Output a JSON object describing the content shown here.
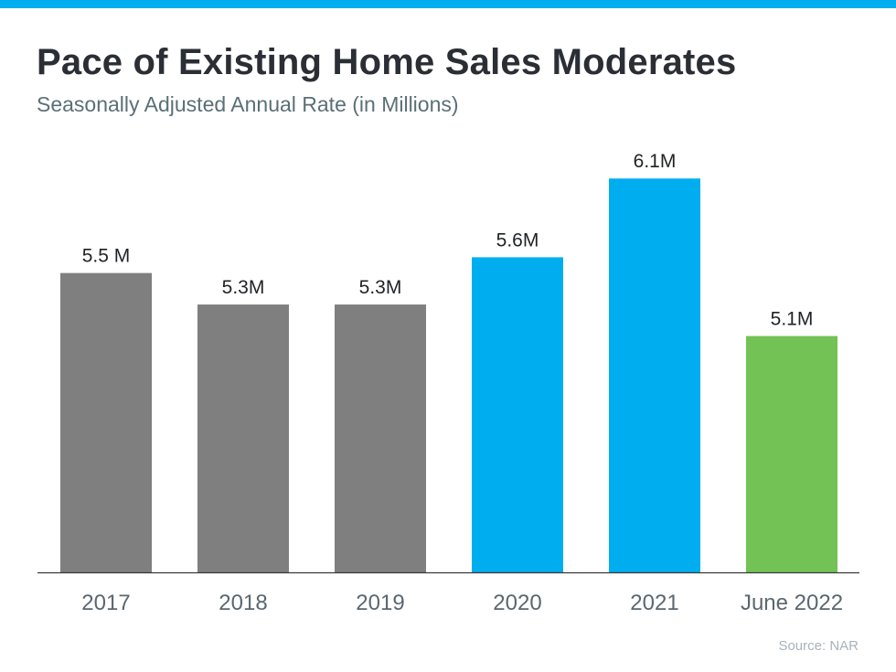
{
  "header": {
    "title": "Pace of Existing Home Sales Moderates",
    "subtitle": "Seasonally Adjusted Annual Rate (in Millions)"
  },
  "footer": {
    "source": "Source: NAR"
  },
  "colors": {
    "accent": "#00aeef",
    "gray": "#7f7f7f",
    "blue": "#00aeef",
    "green": "#72c256"
  },
  "chart_data": {
    "type": "bar",
    "title": "Pace of Existing Home Sales Moderates",
    "subtitle": "Seasonally Adjusted Annual Rate (in Millions)",
    "categories": [
      "2017",
      "2018",
      "2019",
      "2020",
      "2021",
      "June 2022"
    ],
    "values": [
      5.5,
      5.3,
      5.3,
      5.6,
      6.1,
      5.1
    ],
    "data_labels": [
      "5.5 M",
      "5.3M",
      "5.3M",
      "5.6M",
      "6.1M",
      "5.1M"
    ],
    "bar_colors": [
      "#7f7f7f",
      "#7f7f7f",
      "#7f7f7f",
      "#00aeef",
      "#00aeef",
      "#72c256"
    ],
    "ylim": [
      3.6,
      6.2
    ],
    "grid": false,
    "legend": "none"
  }
}
